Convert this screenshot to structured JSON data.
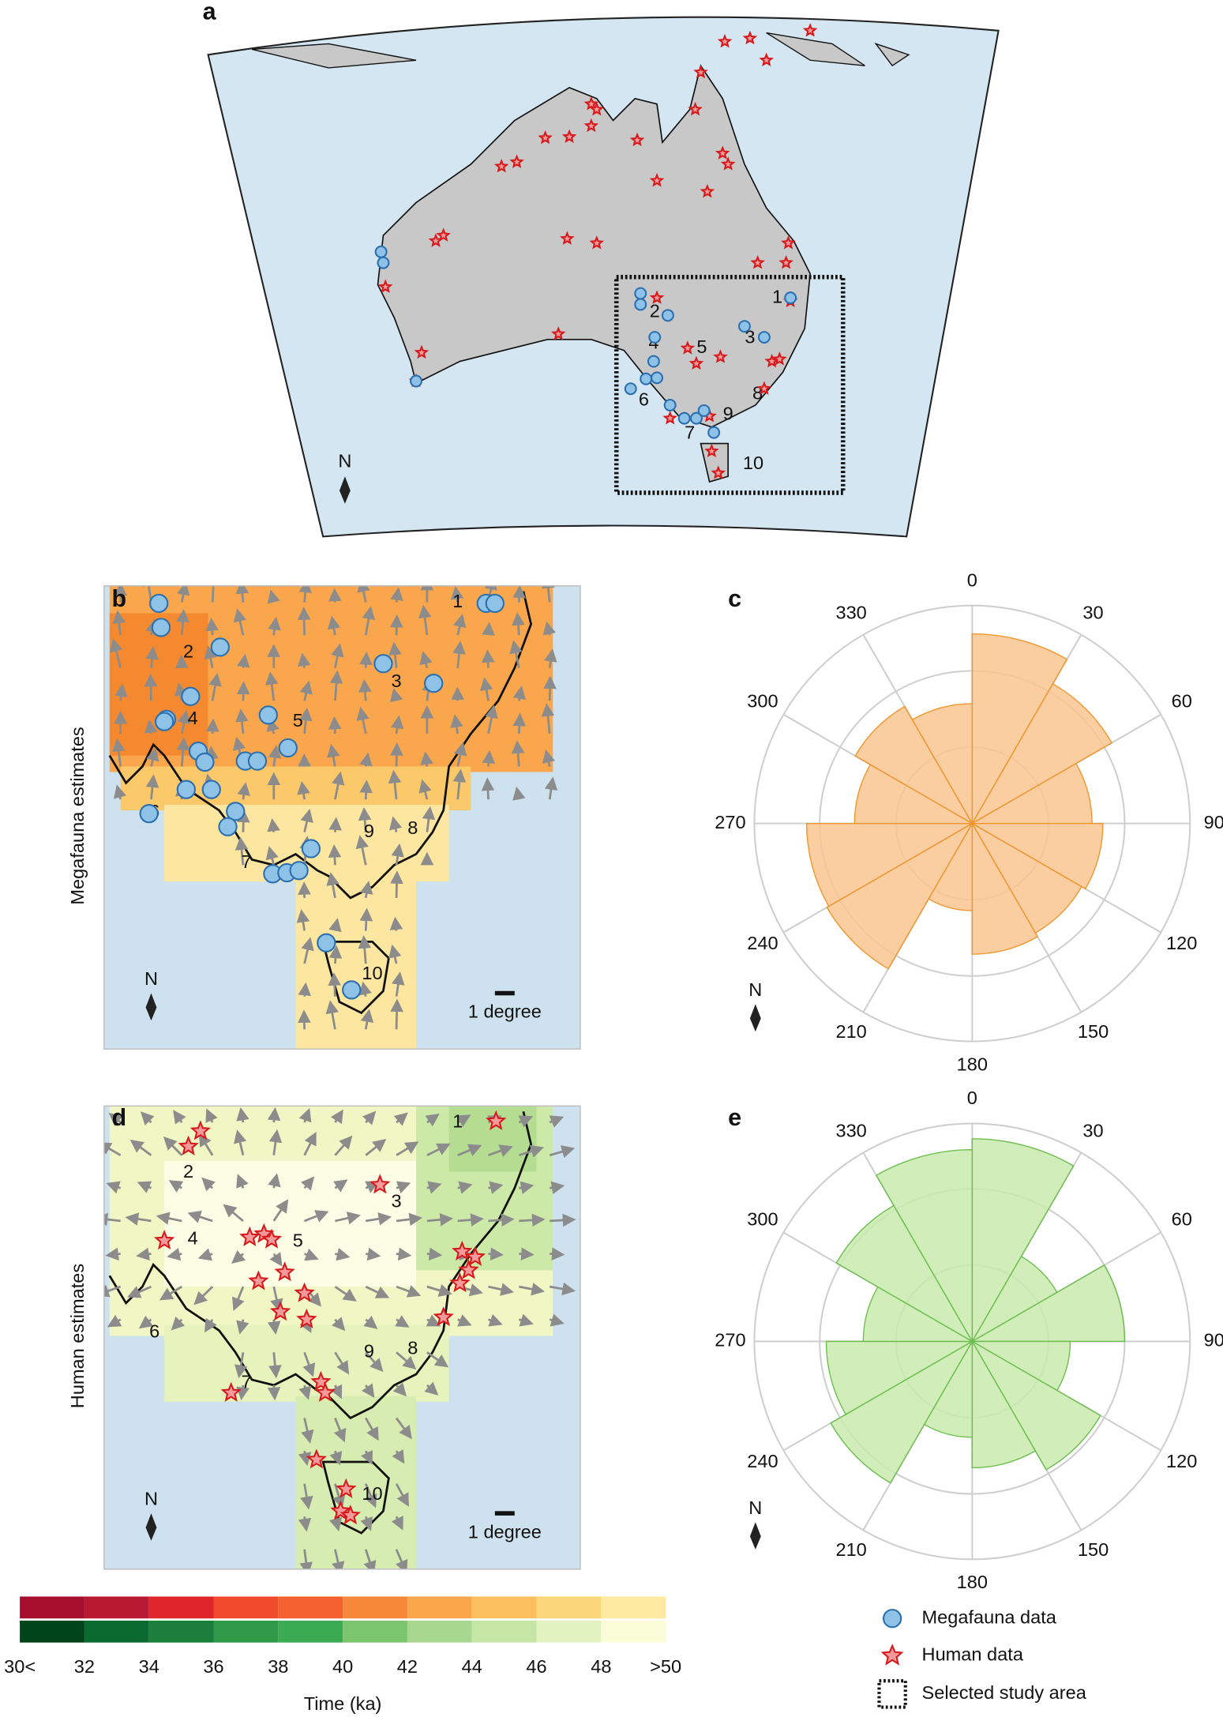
{
  "panel_labels": [
    "a",
    "b",
    "c",
    "d",
    "e"
  ],
  "map_a": {
    "north": "N",
    "site_labels": [
      "1",
      "2",
      "3",
      "4",
      "5",
      "6",
      "7",
      "8",
      "9",
      "10"
    ]
  },
  "map_b": {
    "ylabel": "Megafauna estimates",
    "scale_label": "1 degree",
    "north": "N",
    "site_labels": [
      "1",
      "2",
      "3",
      "4",
      "5",
      "6",
      "7",
      "8",
      "9",
      "10"
    ]
  },
  "map_d": {
    "ylabel": "Human estimates",
    "scale_label": "1 degree",
    "north": "N",
    "site_labels": [
      "1",
      "2",
      "3",
      "4",
      "5",
      "6",
      "7",
      "8",
      "9",
      "10"
    ]
  },
  "chart_data": [
    {
      "type": "polar_bar",
      "north": "N",
      "color": "#f9c690",
      "edge_color": "#f0962e",
      "thetaticks": [
        0,
        30,
        60,
        90,
        120,
        150,
        180,
        210,
        240,
        270,
        300,
        330
      ],
      "rlim": [
        0,
        1
      ],
      "rticks": [
        0.35,
        0.7,
        1
      ],
      "values": [
        0.87,
        0.74,
        0.55,
        0.6,
        0.58,
        0.6,
        0.4,
        0.77,
        0.76,
        0.54,
        0.62,
        0.55
      ]
    },
    {
      "type": "polar_bar",
      "north": "N",
      "color": "#c9eaae",
      "edge_color": "#6cbf4e",
      "thetaticks": [
        0,
        30,
        60,
        90,
        120,
        150,
        180,
        210,
        240,
        270,
        300,
        330
      ],
      "rlim": [
        0,
        1
      ],
      "rticks": [
        0.35,
        0.7,
        1
      ],
      "values": [
        0.93,
        0.45,
        0.7,
        0.45,
        0.68,
        0.58,
        0.44,
        0.75,
        0.67,
        0.5,
        0.72,
        0.88
      ]
    }
  ],
  "colorbar": {
    "title": "Time (ka)",
    "labels": [
      "30<",
      "32",
      "34",
      "36",
      "38",
      "40",
      "42",
      "44",
      "46",
      "48",
      ">50"
    ],
    "colors_megafauna": [
      "#a50f2d",
      "#b81830",
      "#e0252a",
      "#ef4a2c",
      "#f4602e",
      "#f7883a",
      "#faa64a",
      "#fcbf5e",
      "#fcd77a",
      "#fde9a0"
    ],
    "colors_human": [
      "#00441b",
      "#0a6a2f",
      "#1b7e3a",
      "#2f9a48",
      "#3aab52",
      "#7cc56f",
      "#a8d890",
      "#c6e6a6",
      "#e2f2c0",
      "#fbfcd8"
    ]
  },
  "legend": {
    "items": [
      "Megafauna data",
      "Human data",
      "Selected study area"
    ]
  }
}
